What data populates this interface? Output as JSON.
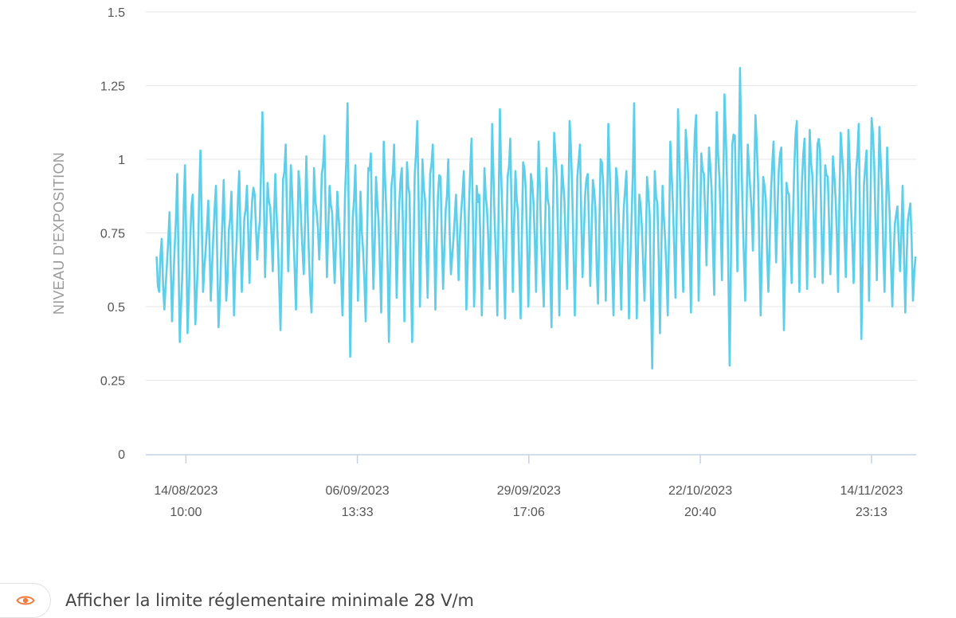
{
  "chart_data": {
    "type": "line",
    "title": "",
    "xlabel": "",
    "ylabel": "NIVEAU D'EXPOSITION",
    "ylim": [
      0,
      1.5
    ],
    "yticks": [
      "0",
      "0.25",
      "0.5",
      "0.75",
      "1",
      "1.25",
      "1.5"
    ],
    "xlim": [
      "2023-08-09T00:00",
      "2023-11-21T00:00"
    ],
    "xticks": [
      {
        "date": "14/08/2023",
        "time": "10:00",
        "value": "2023-08-14T10:00"
      },
      {
        "date": "06/09/2023",
        "time": "13:33",
        "value": "2023-09-06T13:33"
      },
      {
        "date": "29/09/2023",
        "time": "17:06",
        "value": "2023-09-29T17:06"
      },
      {
        "date": "22/10/2023",
        "time": "20:40",
        "value": "2023-10-22T20:40"
      },
      {
        "date": "14/11/2023",
        "time": "23:13",
        "value": "2023-11-14T23:13"
      }
    ],
    "grid": "horizontal",
    "line_color": "#5ecfea",
    "series": [
      {
        "start": "2023-08-10T11:00",
        "end": "2023-11-20T22:00",
        "sample_minutes": 360,
        "y_min": 0.29,
        "y_max": 1.31,
        "values": [
          0.67,
          0.55,
          0.73,
          0.49,
          0.64,
          0.82,
          0.45,
          0.7,
          0.95,
          0.38,
          0.62,
          0.98,
          0.41,
          0.72,
          0.88,
          0.44,
          0.65,
          1.03,
          0.55,
          0.69,
          0.86,
          0.52,
          0.74,
          0.91,
          0.43,
          0.68,
          0.93,
          0.52,
          0.76,
          0.89,
          0.47,
          0.72,
          0.96,
          0.55,
          0.8,
          0.91,
          0.58,
          0.86,
          0.88,
          0.66,
          0.79,
          1.16,
          0.6,
          0.92,
          0.84,
          0.62,
          0.95,
          0.71,
          0.42,
          0.93,
          1.05,
          0.62,
          0.98,
          0.75,
          0.49,
          0.96,
          0.79,
          0.61,
          1.01,
          0.68,
          0.48,
          0.97,
          0.82,
          0.66,
          0.95,
          1.08,
          0.6,
          0.91,
          0.82,
          0.58,
          0.89,
          0.74,
          0.47,
          0.88,
          1.19,
          0.33,
          0.8,
          0.98,
          0.52,
          0.89,
          0.69,
          0.45,
          0.97,
          1.02,
          0.56,
          0.94,
          0.79,
          0.48,
          1.06,
          0.82,
          0.38,
          0.91,
          1.05,
          0.53,
          0.85,
          0.97,
          0.45,
          0.99,
          0.88,
          0.38,
          0.95,
          1.13,
          0.5,
          1.0,
          0.86,
          0.53,
          0.95,
          1.05,
          0.49,
          0.88,
          0.94,
          0.56,
          0.83,
          1.0,
          0.61,
          0.73,
          0.88,
          0.59,
          0.82,
          0.96,
          0.49,
          0.83,
          1.07,
          0.5,
          0.91,
          0.88,
          0.47,
          0.97,
          0.83,
          0.56,
          1.12,
          0.78,
          0.47,
          1.17,
          0.8,
          0.46,
          0.94,
          1.07,
          0.55,
          0.96,
          0.82,
          0.46,
          0.99,
          0.9,
          0.5,
          0.95,
          0.85,
          0.55,
          1.06,
          0.72,
          0.5,
          0.97,
          0.84,
          0.43,
          1.09,
          0.94,
          0.47,
          0.98,
          0.86,
          0.56,
          1.13,
          0.89,
          0.47,
          0.94,
          1.05,
          0.6,
          0.88,
          0.95,
          0.57,
          0.93,
          0.83,
          0.51,
          1.0,
          0.92,
          0.52,
          1.12,
          0.81,
          0.47,
          0.97,
          0.81,
          0.49,
          0.84,
          0.96,
          0.46,
          0.8,
          1.19,
          0.46,
          0.88,
          0.77,
          0.52,
          0.94,
          0.81,
          0.29,
          0.96,
          0.85,
          0.41,
          0.91,
          0.73,
          0.47,
          1.06,
          0.85,
          0.53,
          1.17,
          0.84,
          0.55,
          1.1,
          0.92,
          0.48,
          0.95,
          1.15,
          0.52,
          1.02,
          0.95,
          0.64,
          1.04,
          0.9,
          0.54,
          1.16,
          0.94,
          0.59,
          1.22,
          0.91,
          0.3,
          1.05,
          1.08,
          0.62,
          1.31,
          0.83,
          0.52,
          1.05,
          0.9,
          0.69,
          1.15,
          0.92,
          0.47,
          0.94,
          0.86,
          0.55,
          0.89,
          1.06,
          0.65,
          0.96,
          1.04,
          0.42,
          0.92,
          0.88,
          0.58,
          0.96,
          1.13,
          0.55,
          0.92,
          1.07,
          0.56,
          1.1,
          0.95,
          0.6,
          1.05,
          1.03,
          0.58,
          0.98,
          0.94,
          0.61,
          1.01,
          0.87,
          0.55,
          1.09,
          0.95,
          0.6,
          1.1,
          0.85,
          0.58,
          0.96,
          1.12,
          0.39,
          0.91,
          1.03,
          0.52,
          1.14,
          0.98,
          0.59,
          1.11,
          0.9,
          0.55,
          1.04,
          0.81,
          0.5,
          0.78,
          0.84,
          0.62,
          0.91,
          0.48,
          0.79,
          0.85,
          0.52,
          0.67
        ]
      }
    ]
  },
  "legend": {
    "icon": "eye-icon",
    "icon_color": "#f07b3f",
    "label": "Afficher la limite réglementaire minimale 28 V/m"
  }
}
